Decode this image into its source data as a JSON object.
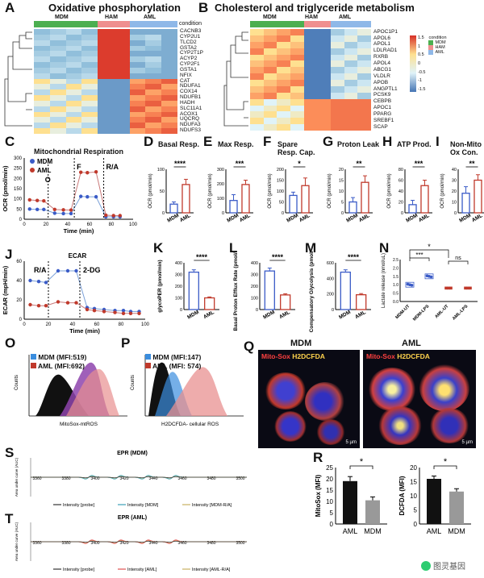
{
  "panels": {
    "A": {
      "letter": "A",
      "title": "Oxidative phosphorylation",
      "groups": [
        "MDM",
        "HAM",
        "AML"
      ],
      "condition_label": "condition",
      "genes": [
        "CACNB3",
        "CYP2U1",
        "TLCD2",
        "GSTA2",
        "CYP2T1P",
        "ACYP2",
        "CYP2F1",
        "GSTA1",
        "NFIX",
        "CAT",
        "NDUFA1",
        "COX14",
        "NDUFB1",
        "HADH",
        "SLC11A1",
        "ACOX1",
        "UQCRQ",
        "NDUFA3",
        "NDUFS3"
      ]
    },
    "B": {
      "letter": "B",
      "title": "Cholesterol and triglyceride metabolism",
      "groups": [
        "MDM",
        "HAM",
        "AML"
      ],
      "genes": [
        "APOC1P1",
        "APOL6",
        "APOL1",
        "LDLRAD1",
        "RXRB",
        "APOL4",
        "ABCG1",
        "VLDLR",
        "APOB",
        "ANGPTL1",
        "PCSK9",
        "CEBPB",
        "APOC1",
        "PPARG",
        "SREBF1",
        "SCAP"
      ],
      "legend": {
        "title": "condition",
        "items": [
          "MDM",
          "HAM",
          "AML"
        ],
        "ticks": [
          "1.5",
          "1",
          "0.5",
          "0",
          "-0.5",
          "-1",
          "-1.5"
        ]
      }
    },
    "C": {
      "letter": "C",
      "title": "Mitochondrial Respiration",
      "ylabel": "OCR (pmol/min)",
      "xlabel": "Time (min)",
      "legend": [
        "MDM",
        "AML"
      ],
      "injections": [
        "O",
        "F",
        "R/A"
      ],
      "yticks": [
        "0",
        "50",
        "100",
        "150",
        "200",
        "250",
        "300"
      ],
      "xticks": [
        "0",
        "20",
        "40",
        "60",
        "80",
        "100"
      ],
      "chart_data": {
        "type": "line",
        "x": [
          5,
          12,
          18,
          28,
          36,
          43,
          52,
          58,
          66,
          75,
          82,
          88
        ],
        "series": [
          {
            "name": "MDM",
            "values": [
              50,
              48,
              48,
              30,
              28,
              28,
              112,
              110,
              110,
              12,
              12,
              12
            ]
          },
          {
            "name": "AML",
            "values": [
              95,
              92,
              90,
              48,
              46,
              45,
              230,
              228,
              232,
              20,
              18,
              18
            ]
          }
        ],
        "ylim": [
          0,
          300
        ],
        "xlim": [
          0,
          100
        ]
      }
    }
  },
  "bar_panels": [
    {
      "letter": "D",
      "title": "Basal Resp.",
      "ylabel": "OCR (pmol/min)",
      "sig": "****",
      "cats": [
        "MDM",
        "AML"
      ],
      "values": [
        20,
        65
      ],
      "err": [
        5,
        12
      ],
      "ymax": 100,
      "yticks": [
        "0",
        "50",
        "100"
      ]
    },
    {
      "letter": "E",
      "title": "Max Resp.",
      "ylabel": "OCR (pmol/min)",
      "sig": "***",
      "cats": [
        "MDM",
        "AML"
      ],
      "values": [
        85,
        195
      ],
      "err": [
        40,
        30
      ],
      "ymax": 300,
      "yticks": [
        "0",
        "100",
        "200",
        "300"
      ]
    },
    {
      "letter": "F",
      "title": "Spare Resp. Cap.",
      "ylabel": "OCR (pmol/min)",
      "sig": "*",
      "cats": [
        "MDM",
        "AML"
      ],
      "values": [
        80,
        125
      ],
      "err": [
        15,
        35
      ],
      "ymax": 200,
      "yticks": [
        "0",
        "50",
        "100",
        "150",
        "200"
      ]
    },
    {
      "letter": "G",
      "title": "Proton Leak",
      "ylabel": "OCR (pmol/min)",
      "sig": "**",
      "cats": [
        "MDM",
        "AML"
      ],
      "values": [
        5,
        14
      ],
      "err": [
        2,
        3
      ],
      "ymax": 20,
      "yticks": [
        "0",
        "5",
        "10",
        "15",
        "20"
      ]
    },
    {
      "letter": "H",
      "title": "ATP Prod.",
      "ylabel": "OCR (pmol/min)",
      "sig": "***",
      "cats": [
        "MDM",
        "AML"
      ],
      "values": [
        15,
        50
      ],
      "err": [
        8,
        10
      ],
      "ymax": 80,
      "yticks": [
        "0",
        "20",
        "40",
        "60",
        "80"
      ]
    },
    {
      "letter": "I",
      "title": "Non-Mito Ox Con.",
      "ylabel": "OCR (pmol/min)",
      "sig": "**",
      "cats": [
        "MDM",
        "AML"
      ],
      "values": [
        18,
        30
      ],
      "err": [
        6,
        5
      ],
      "ymax": 40,
      "yticks": [
        "0",
        "10",
        "20",
        "30",
        "40"
      ]
    },
    {
      "letter": "K",
      "title": "",
      "ylabel": "glycoPER (pmol/min)",
      "sig": "****",
      "cats": [
        "MDM",
        "AML"
      ],
      "values": [
        320,
        100
      ],
      "err": [
        20,
        8
      ],
      "ymax": 400,
      "yticks": [
        "0",
        "100",
        "200",
        "300",
        "400"
      ]
    },
    {
      "letter": "L",
      "title": "",
      "ylabel": "Basal Proton Efflux Rate (pmol/min)",
      "sig": "****",
      "cats": [
        "MDM",
        "AML"
      ],
      "values": [
        330,
        125
      ],
      "err": [
        25,
        10
      ],
      "ymax": 400,
      "yticks": [
        "0",
        "100",
        "200",
        "300",
        "400"
      ]
    },
    {
      "letter": "M",
      "title": "",
      "ylabel": "Compensatory Glycolysis (pmol/min)",
      "sig": "****",
      "cats": [
        "MDM",
        "AML"
      ],
      "values": [
        480,
        190
      ],
      "err": [
        30,
        15
      ],
      "ymax": 600,
      "yticks": [
        "0",
        "200",
        "400",
        "600"
      ]
    }
  ],
  "panel_J": {
    "letter": "J",
    "title": "ECAR",
    "ylabel": "ECAR (mpH/min)",
    "xlabel": "Time (min)",
    "injections": [
      "R/A",
      "2-DG"
    ],
    "yticks": [
      "0",
      "20",
      "40",
      "60"
    ],
    "xticks": [
      "0",
      "20",
      "40",
      "60",
      "80",
      "100"
    ],
    "chart_data": {
      "type": "line",
      "x": [
        5,
        12,
        18,
        28,
        36,
        43,
        52,
        58,
        66,
        75,
        82,
        88,
        95
      ],
      "series": [
        {
          "name": "MDM",
          "values": [
            40,
            39,
            38,
            50,
            50,
            50,
            12,
            11,
            10,
            9,
            9,
            8,
            8
          ]
        },
        {
          "name": "AML",
          "values": [
            15,
            14,
            14,
            18,
            17,
            17,
            10,
            9,
            8,
            7,
            6,
            6,
            6
          ]
        }
      ],
      "ylim": [
        0,
        60
      ],
      "xlim": [
        0,
        100
      ]
    }
  },
  "panel_N": {
    "letter": "N",
    "ylabel": "Lactate release (nmol/uL)",
    "cats": [
      "MDM-UT",
      "MDM-LPS",
      "AML-UT",
      "AML-LPS"
    ],
    "values": [
      1.0,
      1.5,
      0.8,
      0.8
    ],
    "ymax": 2.5,
    "yticks": [
      "0.0",
      "0.5",
      "1.0",
      "1.5",
      "2.0",
      "2.5"
    ],
    "sig": [
      "*",
      "***",
      "ns"
    ],
    "chart_data": {
      "type": "scatter",
      "categories": [
        "MDM-UT",
        "MDM-LPS",
        "AML-UT",
        "AML-LPS"
      ],
      "values": [
        1.0,
        1.5,
        0.8,
        0.8
      ]
    }
  },
  "panel_O": {
    "letter": "O",
    "legend": [
      "MDM (MFI:519)",
      "AML (MFI:692)"
    ],
    "xlabel": "MitoSox-mtROS",
    "ylabel": "Counts"
  },
  "panel_P": {
    "letter": "P",
    "legend": [
      "MDM (MFI:147)",
      "AML (MFI: 574)"
    ],
    "xlabel": "H2DCFDA- cellular ROS",
    "ylabel": "Counts"
  },
  "panel_Q": {
    "letter": "Q",
    "titles": [
      "MDM",
      "AML"
    ],
    "stains": [
      "Mito-Sox",
      "H2DCFDA"
    ],
    "scale": "5 µm"
  },
  "panel_S": {
    "letter": "S",
    "title": "EPR (MDM)",
    "ylabel": "Area under curve (AUC)",
    "legend": [
      "Intensity [probe]",
      "Intensity [MDM]",
      "Intensity [MDM-R/A]"
    ],
    "xticks": [
      "3360",
      "3380",
      "3400",
      "3420",
      "3440",
      "3460",
      "3480",
      "3500"
    ]
  },
  "panel_T": {
    "letter": "T",
    "title": "EPR (AML)",
    "ylabel": "Area under curve (AUC)",
    "legend": [
      "Intensity [probe]",
      "Intensity [AML]",
      "Intensity [AML-R/A]"
    ],
    "xticks": [
      "3360",
      "3380",
      "3400",
      "3420",
      "3440",
      "3460",
      "3480",
      "3500"
    ]
  },
  "panel_R": [
    {
      "letter": "R",
      "ylabel": "MitoSox (MFI)",
      "cats": [
        "AML",
        "MDM"
      ],
      "values": [
        19,
        10.5
      ],
      "err": [
        2,
        1.5
      ],
      "ymax": 25,
      "yticks": [
        "0",
        "5",
        "10",
        "15",
        "20",
        "25"
      ],
      "sig": "*"
    },
    {
      "ylabel": "DCFDA (MFI)",
      "cats": [
        "AML",
        "MDM"
      ],
      "values": [
        16,
        11.5
      ],
      "err": [
        1,
        1
      ],
      "ymax": 20,
      "yticks": [
        "0",
        "5",
        "10",
        "15",
        "20"
      ],
      "sig": "*"
    }
  ],
  "watermark": "图灵基因",
  "colors": {
    "mdm": "#3a5bc7",
    "aml": "#c0392b",
    "heat_hi": "#d73027",
    "heat_lo": "#4575b4"
  }
}
